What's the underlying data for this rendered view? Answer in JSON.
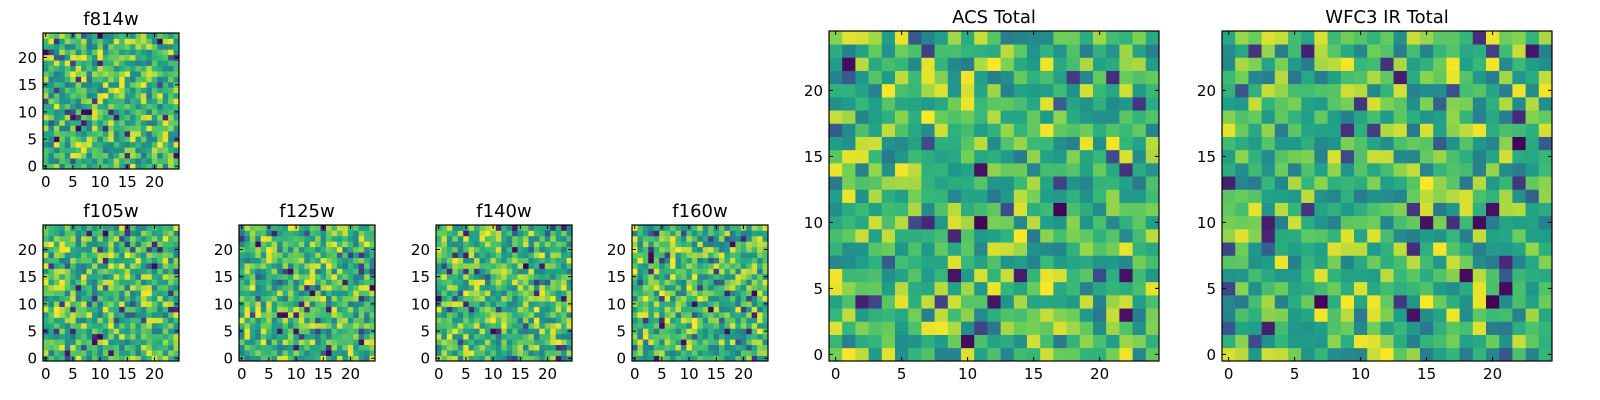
{
  "chart_data": [
    {
      "id": "f814w",
      "type": "heatmap",
      "title": "f814w",
      "grid_size": 25,
      "xticks": [
        0,
        5,
        10,
        15,
        20
      ],
      "yticks": [
        0,
        5,
        10,
        15,
        20
      ],
      "xlim": [
        -0.5,
        24.5
      ],
      "ylim": [
        -0.5,
        24.5
      ],
      "colormap": "viridis",
      "seed": 11
    },
    {
      "id": "f105w",
      "type": "heatmap",
      "title": "f105w",
      "grid_size": 25,
      "xticks": [
        0,
        5,
        10,
        15,
        20
      ],
      "yticks": [
        0,
        5,
        10,
        15,
        20
      ],
      "xlim": [
        -0.5,
        24.5
      ],
      "ylim": [
        -0.5,
        24.5
      ],
      "colormap": "viridis",
      "seed": 23
    },
    {
      "id": "f125w",
      "type": "heatmap",
      "title": "f125w",
      "grid_size": 25,
      "xticks": [
        0,
        5,
        10,
        15,
        20
      ],
      "yticks": [
        0,
        5,
        10,
        15,
        20
      ],
      "xlim": [
        -0.5,
        24.5
      ],
      "ylim": [
        -0.5,
        24.5
      ],
      "colormap": "viridis",
      "seed": 37
    },
    {
      "id": "f140w",
      "type": "heatmap",
      "title": "f140w",
      "grid_size": 25,
      "xticks": [
        0,
        5,
        10,
        15,
        20
      ],
      "yticks": [
        0,
        5,
        10,
        15,
        20
      ],
      "xlim": [
        -0.5,
        24.5
      ],
      "ylim": [
        -0.5,
        24.5
      ],
      "colormap": "viridis",
      "seed": 41
    },
    {
      "id": "f160w",
      "type": "heatmap",
      "title": "f160w",
      "grid_size": 25,
      "xticks": [
        0,
        5,
        10,
        15,
        20
      ],
      "yticks": [
        0,
        5,
        10,
        15,
        20
      ],
      "xlim": [
        -0.5,
        24.5
      ],
      "ylim": [
        -0.5,
        24.5
      ],
      "colormap": "viridis",
      "seed": 59
    },
    {
      "id": "acs-total",
      "type": "heatmap",
      "title": "ACS Total",
      "grid_size": 25,
      "xticks": [
        0,
        5,
        10,
        15,
        20
      ],
      "yticks": [
        0,
        5,
        10,
        15,
        20
      ],
      "xlim": [
        -0.5,
        24.5
      ],
      "ylim": [
        -0.5,
        24.5
      ],
      "colormap": "viridis",
      "seed": 73
    },
    {
      "id": "wfc3-ir-total",
      "type": "heatmap",
      "title": "WFC3 IR Total",
      "grid_size": 25,
      "xticks": [
        0,
        5,
        10,
        15,
        20
      ],
      "yticks": [
        0,
        5,
        10,
        15,
        20
      ],
      "xlim": [
        -0.5,
        24.5
      ],
      "ylim": [
        -0.5,
        24.5
      ],
      "colormap": "viridis",
      "seed": 89
    }
  ],
  "colors": {
    "frame": "#000000",
    "background": "#ffffff"
  }
}
